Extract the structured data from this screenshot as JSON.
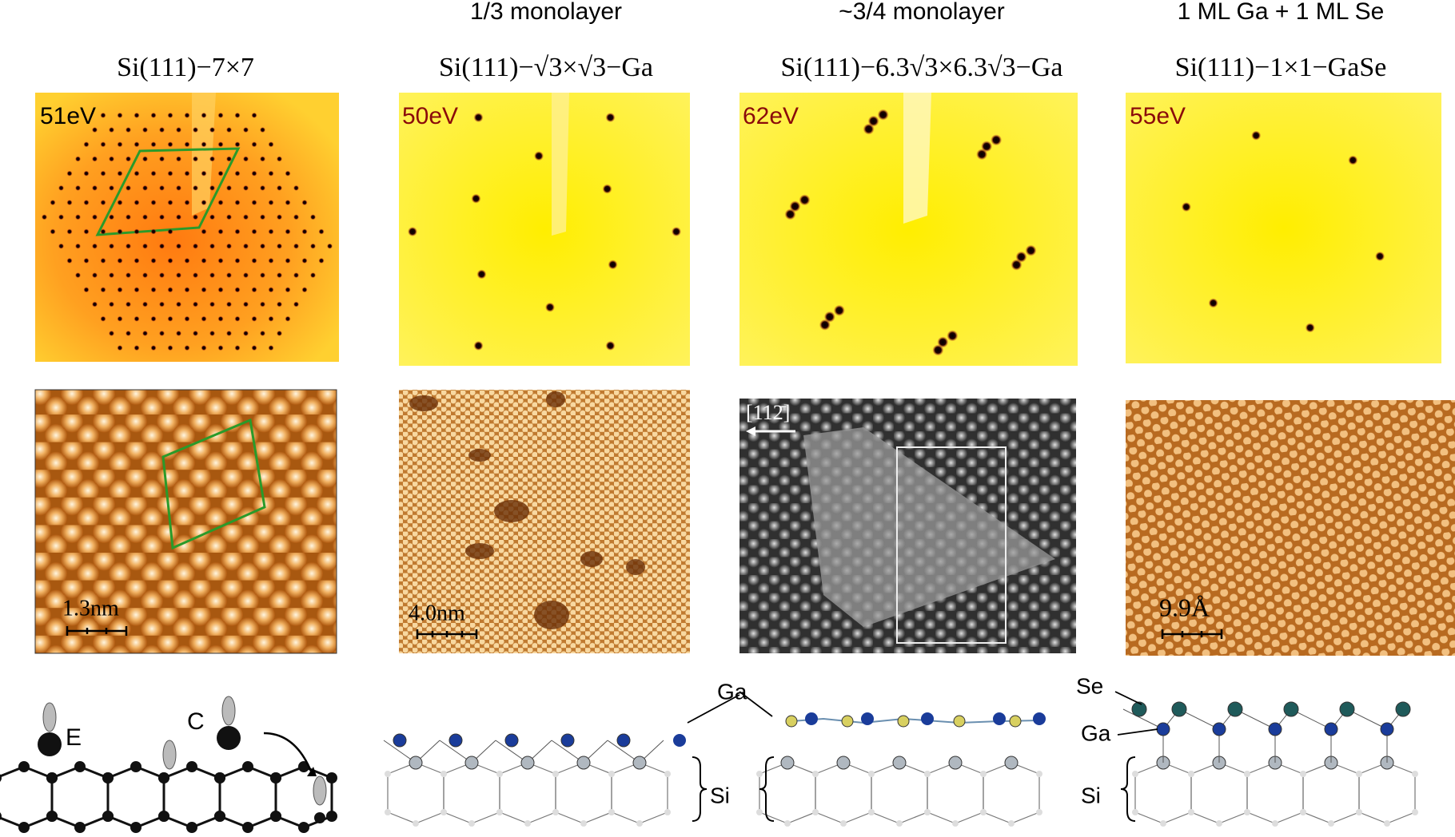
{
  "panels": [
    {
      "structure": "Si(111)−7×7",
      "leed_energy": "51eV",
      "stm_scale": "1.3nm",
      "model_labels": [
        "E",
        "C"
      ]
    },
    {
      "coverage": "1/3 monolayer",
      "structure": "Si(111)−√3×√3−Ga",
      "leed_energy": "50eV",
      "stm_scale": "4.0nm",
      "model_labels": [
        "Ga",
        "Si"
      ]
    },
    {
      "coverage": "~3/4 monolayer",
      "structure": "Si(111)−6.3√3×6.3√3−Ga",
      "leed_energy": "62eV",
      "stm_direction": "[112̄]"
    },
    {
      "coverage": "1 ML Ga + 1 ML Se",
      "structure": "Si(111)−1×1−GaSe",
      "leed_energy": "55eV",
      "stm_scale": "9.9Å",
      "model_labels": [
        "Se",
        "Ga",
        "Si"
      ]
    }
  ]
}
